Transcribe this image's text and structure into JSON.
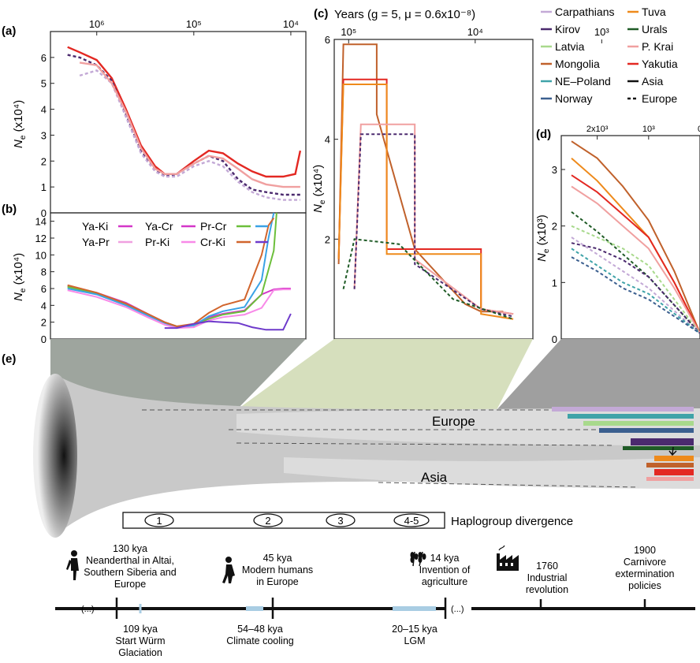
{
  "colors": {
    "Carpathians": "#c3a9d6",
    "Kirov": "#4b2a6e",
    "Latvia": "#a8d98c",
    "Mongolia": "#c0612b",
    "NE-Poland": "#3fa3a8",
    "Norway": "#3b5f8f",
    "Tuva": "#ee8a1b",
    "Urals": "#1f5b26",
    "P. Krai": "#f0a0a0",
    "Yakutia": "#e32822",
    "Ya-Ki": "#d436c8",
    "Ya-Cr": "#d436c8",
    "Pr-Cr": "#6cbf3b",
    "Cr-blue": "#3aa2e6",
    "Ya-Pr": "#f0a0e0",
    "Pr-Ki": "#f88ae8",
    "Cr-Ki": "#d1652d",
    "violet": "#6e3acb",
    "grey": "#c9c9c9",
    "timeline_blue": "#a9cde3"
  },
  "panels": {
    "a_label": "(a)",
    "b_label": "(b)",
    "c_label": "(c)",
    "d_label": "(d)",
    "e_label": "(e)",
    "c_title": "Years (g = 5, μ = 0.6x10⁻⁸)"
  },
  "legend": {
    "col1": [
      "Carpathians",
      "Kirov",
      "Latvia",
      "Mongolia",
      "NE–Poland",
      "Norway"
    ],
    "col2": [
      "Tuva",
      "Urals",
      "P. Krai",
      "Yakutia",
      "Asia",
      "Europe"
    ]
  },
  "b_legend": [
    "Ya-Ki",
    "Ya-Cr",
    "Pr-Cr",
    "Ya-Pr",
    "Pr-Ki",
    "Cr-Ki"
  ],
  "chart_data": [
    {
      "panel": "a",
      "type": "line",
      "ylabel": "Ne (x10⁴)",
      "x_ticks": [
        "10⁶",
        "10⁵",
        "10⁴"
      ],
      "y_ticks": [
        "0",
        "1",
        "2",
        "3",
        "4",
        "5",
        "6"
      ],
      "ylim": [
        0,
        7
      ],
      "xscale": "log-reversed",
      "x_unit_years": true,
      "series": [
        {
          "name": "Yakutia",
          "x": [
            2000000,
            1500000,
            1000000,
            700000,
            500000,
            350000,
            250000,
            200000,
            150000,
            100000,
            70000,
            50000,
            35000,
            25000,
            18000,
            12000,
            9000,
            8000
          ],
          "y": [
            6.4,
            6.2,
            5.9,
            5.2,
            4.0,
            2.6,
            1.8,
            1.5,
            1.5,
            2.0,
            2.4,
            2.3,
            1.9,
            1.6,
            1.4,
            1.4,
            1.5,
            2.4
          ]
        },
        {
          "name": "Kirov",
          "x": [
            2000000,
            1500000,
            1000000,
            700000,
            500000,
            350000,
            250000,
            200000,
            150000,
            100000,
            70000,
            50000,
            35000,
            25000,
            18000,
            12000,
            9000,
            8000
          ],
          "y": [
            6.1,
            6.0,
            5.7,
            5.1,
            3.8,
            2.4,
            1.7,
            1.4,
            1.5,
            1.9,
            2.2,
            2.0,
            1.3,
            0.9,
            0.8,
            0.7,
            0.7,
            0.7
          ]
        },
        {
          "name": "Carpathians",
          "x": [
            1500000,
            1000000,
            700000,
            500000,
            350000,
            250000,
            200000,
            150000,
            100000,
            70000,
            50000,
            35000,
            25000,
            18000,
            12000,
            9000,
            8000
          ],
          "y": [
            5.3,
            5.5,
            5.0,
            3.7,
            2.3,
            1.6,
            1.4,
            1.4,
            1.8,
            2.0,
            1.8,
            1.2,
            0.8,
            0.6,
            0.5,
            0.5,
            0.5
          ]
        },
        {
          "name": "P. Krai",
          "x": [
            1500000,
            1000000,
            700000,
            500000,
            350000,
            250000,
            200000,
            150000,
            100000,
            70000,
            50000,
            35000,
            25000,
            18000,
            12000,
            9000,
            8000
          ],
          "y": [
            5.8,
            5.7,
            5.0,
            3.9,
            2.5,
            1.7,
            1.5,
            1.5,
            1.9,
            2.2,
            2.1,
            1.7,
            1.3,
            1.1,
            1.0,
            1.0,
            1.0
          ]
        }
      ]
    },
    {
      "panel": "b",
      "type": "line",
      "ylabel": "Ne (x10⁴)",
      "y_ticks": [
        "0",
        "2",
        "4",
        "6",
        "8",
        "10",
        "12",
        "14"
      ],
      "ylim": [
        0,
        15
      ],
      "series": [
        {
          "name": "Ya-Ki",
          "x": [
            2000000,
            1000000,
            500000,
            300000,
            200000,
            150000,
            100000,
            70000,
            50000,
            30000,
            20000,
            15000,
            12000,
            10000
          ],
          "y": [
            6.3,
            5.5,
            4.3,
            3.0,
            2.0,
            1.5,
            1.7,
            2.6,
            3.0,
            3.4,
            5.3,
            5.9,
            6.0,
            6.0
          ]
        },
        {
          "name": "Pr-Cr",
          "x": [
            2000000,
            1000000,
            500000,
            300000,
            200000,
            150000,
            100000,
            70000,
            50000,
            30000,
            20000,
            15000,
            14000
          ],
          "y": [
            6.2,
            5.4,
            4.1,
            2.9,
            2.0,
            1.5,
            1.6,
            2.4,
            2.9,
            3.3,
            5.3,
            10.5,
            15
          ]
        },
        {
          "name": "Cr-blue",
          "x": [
            2000000,
            1000000,
            500000,
            300000,
            200000,
            150000,
            100000,
            70000,
            50000,
            30000,
            20000,
            17000,
            15000
          ],
          "y": [
            6.0,
            5.3,
            4.0,
            2.8,
            1.9,
            1.4,
            1.6,
            2.7,
            3.3,
            3.8,
            7.0,
            12.0,
            15
          ]
        },
        {
          "name": "Pr-Ki",
          "x": [
            2000000,
            1000000,
            500000,
            300000,
            200000,
            150000,
            100000,
            70000,
            50000,
            30000,
            20000,
            15000,
            12000,
            10000
          ],
          "y": [
            5.8,
            5.0,
            3.8,
            2.6,
            1.7,
            1.3,
            1.4,
            2.2,
            2.6,
            2.9,
            3.7,
            5.8,
            5.9,
            5.9
          ]
        },
        {
          "name": "Cr-Ki",
          "x": [
            2000000,
            1000000,
            500000,
            300000,
            200000,
            150000,
            100000,
            70000,
            50000,
            30000,
            20000,
            17000,
            15000
          ],
          "y": [
            6.4,
            5.5,
            4.2,
            3.0,
            2.0,
            1.5,
            1.8,
            3.1,
            4.0,
            4.7,
            10.0,
            13.5,
            14.4
          ]
        },
        {
          "name": "violet",
          "x": [
            200000,
            150000,
            100000,
            70000,
            50000,
            35000,
            25000,
            18000,
            12000,
            10000
          ],
          "y": [
            1.3,
            1.3,
            1.8,
            2.1,
            2.0,
            1.9,
            1.4,
            1.1,
            1.1,
            3.0
          ]
        }
      ]
    },
    {
      "panel": "c",
      "type": "line",
      "ylabel": "Ne (x10⁴)",
      "x_ticks": [
        "10⁵",
        "10⁴",
        "10³"
      ],
      "y_ticks": [
        "2",
        "4",
        "6"
      ],
      "ylim": [
        0,
        6
      ],
      "series": [
        {
          "name": "Mongolia",
          "x": [
            120000,
            110000,
            60000,
            60000,
            30000,
            12000,
            9000,
            6000
          ],
          "y": [
            1.5,
            5.9,
            5.9,
            4.5,
            1.8,
            0.7,
            0.55,
            0.55
          ]
        },
        {
          "name": "Yakutia",
          "x": [
            120000,
            110000,
            50000,
            50000,
            9000,
            9000,
            5000
          ],
          "y": [
            1.6,
            5.2,
            5.2,
            1.8,
            1.8,
            0.6,
            0.5
          ]
        },
        {
          "name": "Tuva",
          "x": [
            120000,
            110000,
            50000,
            50000,
            9000,
            9000,
            5000
          ],
          "y": [
            1.6,
            5.1,
            5.1,
            1.7,
            1.7,
            0.5,
            0.4
          ]
        },
        {
          "name": "P. Krai",
          "x": [
            90000,
            80000,
            30000,
            30000,
            9000,
            5000
          ],
          "y": [
            1.0,
            4.3,
            4.3,
            1.6,
            0.6,
            0.5
          ]
        },
        {
          "name": "Kirov",
          "x": [
            90000,
            80000,
            30000,
            30000,
            9000,
            5000
          ],
          "y": [
            1.0,
            4.1,
            4.1,
            1.5,
            0.6,
            0.45
          ]
        },
        {
          "name": "Urals",
          "x": [
            110000,
            90000,
            40000,
            15000,
            5000
          ],
          "y": [
            1.0,
            2.0,
            1.9,
            0.8,
            0.4
          ]
        }
      ]
    },
    {
      "panel": "d",
      "type": "line",
      "ylabel": "Ne (x10³)",
      "x_ticks": [
        "2x10³",
        "10³",
        "0"
      ],
      "y_ticks": [
        "0",
        "1",
        "2",
        "3"
      ],
      "ylim": [
        0,
        3.6
      ],
      "series": [
        {
          "name": "Mongolia",
          "x": [
            2500,
            2000,
            1500,
            1000,
            500,
            0
          ],
          "y": [
            3.5,
            3.2,
            2.7,
            2.1,
            1.2,
            0.1
          ]
        },
        {
          "name": "Tuva",
          "x": [
            2500,
            2000,
            1500,
            1000,
            500,
            0
          ],
          "y": [
            3.2,
            2.8,
            2.3,
            1.8,
            1.0,
            0.1
          ]
        },
        {
          "name": "Yakutia",
          "x": [
            2500,
            2000,
            1500,
            1000,
            500,
            0
          ],
          "y": [
            2.9,
            2.6,
            2.2,
            1.8,
            1.0,
            0.1
          ]
        },
        {
          "name": "P. Krai",
          "x": [
            2500,
            2000,
            1500,
            1000,
            500,
            0
          ],
          "y": [
            2.7,
            2.4,
            2.0,
            1.6,
            0.9,
            0.1
          ]
        },
        {
          "name": "Urals",
          "x": [
            2500,
            2000,
            1500,
            1000,
            500,
            0
          ],
          "y": [
            2.25,
            1.9,
            1.5,
            1.1,
            0.6,
            0.1
          ]
        },
        {
          "name": "Latvia",
          "x": [
            2500,
            2000,
            1500,
            1000,
            500,
            0
          ],
          "y": [
            2.0,
            1.8,
            1.6,
            1.3,
            0.7,
            0.1
          ]
        },
        {
          "name": "Kirov",
          "x": [
            2500,
            2000,
            1500,
            1000,
            500,
            0
          ],
          "y": [
            1.7,
            1.6,
            1.4,
            1.1,
            0.6,
            0.1
          ]
        },
        {
          "name": "Carpathians",
          "x": [
            2500,
            2000,
            1500,
            1000,
            500,
            0
          ],
          "y": [
            1.8,
            1.5,
            1.2,
            0.9,
            0.5,
            0.1
          ]
        },
        {
          "name": "NE-Poland",
          "x": [
            2500,
            2000,
            1500,
            1000,
            500,
            0
          ],
          "y": [
            1.6,
            1.3,
            1.0,
            0.8,
            0.45,
            0.1
          ]
        },
        {
          "name": "Norway",
          "x": [
            2500,
            2000,
            1500,
            1000,
            500,
            0
          ],
          "y": [
            1.45,
            1.2,
            0.9,
            0.7,
            0.4,
            0.1
          ]
        }
      ]
    }
  ],
  "scheme": {
    "europe_label": "Europe",
    "asia_label": "Asia",
    "haplogroup_label": "Haplogroup divergence",
    "haplogroups": [
      "1",
      "2",
      "3",
      "4-5"
    ]
  },
  "timeline": {
    "ellipsis": "(...)",
    "above": [
      {
        "lines": [
          "130 kya",
          "Neanderthal in Altai,",
          "Southern Siberia and",
          "Europe"
        ],
        "icon": "neanderthal-icon"
      },
      {
        "lines": [
          "45 kya",
          "Modern humans",
          "in Europe"
        ],
        "icon": "human-icon"
      },
      {
        "lines": [
          "14 kya",
          "Invention of",
          "agriculture"
        ],
        "icon": "wheat-icon"
      },
      {
        "lines": [
          "1760",
          "Industrial",
          "revolution"
        ],
        "icon": "factory-icon"
      },
      {
        "lines": [
          "1900",
          "Carnivore",
          "extermination",
          "policies"
        ],
        "icon": ""
      }
    ],
    "below": [
      {
        "lines": [
          "109 kya",
          "Start Würm",
          "Glaciation"
        ]
      },
      {
        "lines": [
          "54–48 kya",
          "Climate cooling"
        ]
      },
      {
        "lines": [
          "20–15 kya",
          "LGM"
        ]
      }
    ]
  }
}
